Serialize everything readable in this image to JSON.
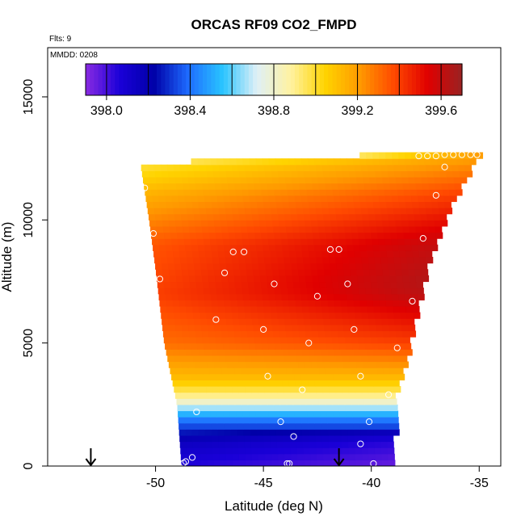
{
  "chart_data": {
    "type": "heatmap",
    "title": "ORCAS RF09 CO2_FMPD",
    "xlabel": "Latitude (deg N)",
    "ylabel": "Altitude (m)",
    "notes": {
      "flights": "Flts: 9",
      "date": "MMDD: 0208"
    },
    "xlim": [
      -55,
      -34
    ],
    "ylim": [
      0,
      17000
    ],
    "x_ticks": [
      -50,
      -45,
      -40,
      -35
    ],
    "y_ticks": [
      0,
      5000,
      10000,
      15000
    ],
    "colorbar": {
      "range": [
        397.9,
        399.7
      ],
      "tick_values": [
        398.0,
        398.4,
        398.8,
        399.2,
        399.6
      ],
      "tick_labels": [
        "398.0",
        "398.4",
        "398.8",
        "399.2",
        "399.6"
      ],
      "colors": [
        "#8a2be2",
        "#1a00d8",
        "#0000a8",
        "#1e6cff",
        "#29c4ff",
        "#dff0f7",
        "#fff2a0",
        "#ffd400",
        "#ff9a00",
        "#ff4a00",
        "#e00000",
        "#9a2222"
      ]
    },
    "domain_outline": [
      {
        "y": 0,
        "x_left": -48.8,
        "x_right": -39.0
      },
      {
        "y": 2500,
        "x_left": -49.0,
        "x_right": -39.0
      },
      {
        "y": 5000,
        "x_left": -49.6,
        "x_right": -38.3
      },
      {
        "y": 8000,
        "x_left": -50.0,
        "x_right": -37.5
      },
      {
        "y": 10000,
        "x_left": -50.3,
        "x_right": -36.7
      },
      {
        "y": 12300,
        "x_left": -50.7,
        "x_right": -35.3
      },
      {
        "y": 12700,
        "x_left": -38.2,
        "x_right": -34.9
      }
    ],
    "field_profile": [
      {
        "y": 0,
        "value": 398.05
      },
      {
        "y": 1000,
        "value": 398.15
      },
      {
        "y": 2000,
        "value": 398.45
      },
      {
        "y": 2700,
        "value": 398.85
      },
      {
        "y": 3500,
        "value": 399.1
      },
      {
        "y": 5000,
        "value": 399.3
      },
      {
        "y": 7000,
        "value": 399.4
      },
      {
        "y": 9000,
        "value": 399.35
      },
      {
        "y": 11000,
        "value": 399.15
      },
      {
        "y": 12500,
        "value": 398.95
      }
    ],
    "observations": [
      {
        "x": -48.7,
        "y": 120
      },
      {
        "x": -48.6,
        "y": 180
      },
      {
        "x": -48.3,
        "y": 350
      },
      {
        "x": -43.9,
        "y": 100
      },
      {
        "x": -43.8,
        "y": 100
      },
      {
        "x": -39.9,
        "y": 100
      },
      {
        "x": -40.5,
        "y": 900
      },
      {
        "x": -43.6,
        "y": 1200
      },
      {
        "x": -40.1,
        "y": 1800
      },
      {
        "x": -44.2,
        "y": 1800
      },
      {
        "x": -48.1,
        "y": 2200
      },
      {
        "x": -39.2,
        "y": 2900
      },
      {
        "x": -43.2,
        "y": 3100
      },
      {
        "x": -40.5,
        "y": 3650
      },
      {
        "x": -44.8,
        "y": 3650
      },
      {
        "x": -38.8,
        "y": 4800
      },
      {
        "x": -42.9,
        "y": 5000
      },
      {
        "x": -40.8,
        "y": 5550
      },
      {
        "x": -45.0,
        "y": 5550
      },
      {
        "x": -47.2,
        "y": 5950
      },
      {
        "x": -42.5,
        "y": 6900
      },
      {
        "x": -38.1,
        "y": 6700
      },
      {
        "x": -49.8,
        "y": 7600
      },
      {
        "x": -46.8,
        "y": 7850
      },
      {
        "x": -44.5,
        "y": 7400
      },
      {
        "x": -41.1,
        "y": 7400
      },
      {
        "x": -46.4,
        "y": 8700
      },
      {
        "x": -45.9,
        "y": 8700
      },
      {
        "x": -41.9,
        "y": 8800
      },
      {
        "x": -41.5,
        "y": 8800
      },
      {
        "x": -37.6,
        "y": 9250
      },
      {
        "x": -50.1,
        "y": 9450
      },
      {
        "x": -37.0,
        "y": 11000
      },
      {
        "x": -50.5,
        "y": 11300
      },
      {
        "x": -36.6,
        "y": 12150
      },
      {
        "x": -37.8,
        "y": 12600
      },
      {
        "x": -37.4,
        "y": 12600
      },
      {
        "x": -37.0,
        "y": 12600
      },
      {
        "x": -36.6,
        "y": 12650
      },
      {
        "x": -36.2,
        "y": 12650
      },
      {
        "x": -35.8,
        "y": 12650
      },
      {
        "x": -35.4,
        "y": 12650
      },
      {
        "x": -35.1,
        "y": 12650
      }
    ],
    "arrows": [
      {
        "x": -53.0
      },
      {
        "x": -41.5
      }
    ],
    "grid": false,
    "legend": "colorbar top"
  }
}
